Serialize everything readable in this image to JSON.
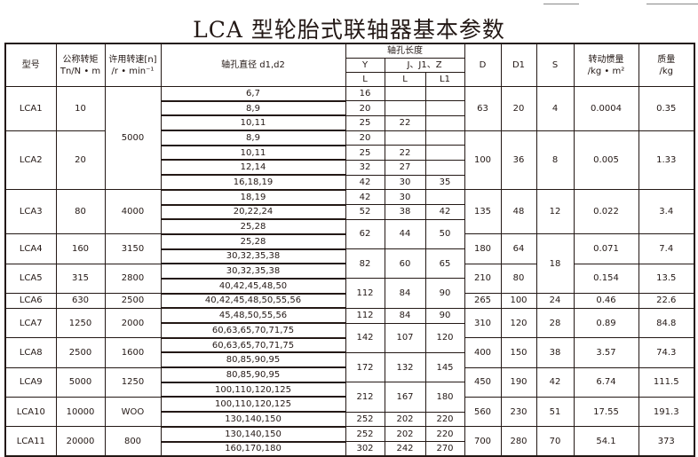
{
  "title": "LCA 型轮胎式联轴器基本参数",
  "header": {
    "model": "型号",
    "torque_1": "公称转矩",
    "torque_2": "Tn/N • m",
    "speed_1": "许用转速[n]",
    "speed_2": "/r • min⁻¹",
    "bore": "轴孔直径 d1,d2",
    "length": "轴孔长度",
    "y": "Y",
    "jz": "J、J1、Z",
    "l_y": "L",
    "l_j": "L",
    "l1": "L1",
    "d": "D",
    "d1": "D1",
    "s": "S",
    "inertia_1": "转动惯量",
    "inertia_2": "/kg • m²",
    "mass_1": "质量",
    "mass_2": "/kg"
  },
  "models": [
    {
      "model": "LCA1",
      "torque": "10",
      "bores": [
        "6,7",
        "8,9",
        "10,11"
      ],
      "D": "63",
      "D1": "20",
      "inertia": "0.0004",
      "mass": "0.35"
    },
    {
      "model": "LCA2",
      "torque": "20",
      "bores": [
        "8,9",
        "10,11",
        "12,14",
        "16,18,19"
      ],
      "D": "100",
      "D1": "36",
      "inertia": "0.005",
      "mass": "1.33"
    },
    {
      "model": "LCA3",
      "torque": "80",
      "speed": "4000",
      "bores": [
        "18,19",
        "20,22,24",
        "25,28"
      ],
      "D": "135",
      "D1": "48",
      "S": "12",
      "inertia": "0.022",
      "mass": "3.4"
    },
    {
      "model": "LCA4",
      "torque": "160",
      "speed": "3150",
      "bores": [
        "25,28",
        "30,32,35,38"
      ],
      "D": "180",
      "D1": "64",
      "inertia": "0.071",
      "mass": "7.4"
    },
    {
      "model": "LCA5",
      "torque": "315",
      "speed": "2800",
      "bores": [
        "30,32,35,38",
        "40,42,45,48,50"
      ],
      "D": "210",
      "D1": "80",
      "inertia": "0.154",
      "mass": "13.5"
    },
    {
      "model": "LCA6",
      "torque": "630",
      "speed": "2500",
      "bores": [
        "40,42,45,48,50,55,56"
      ],
      "D": "265",
      "D1": "100",
      "S": "24",
      "inertia": "0.46",
      "mass": "22.6"
    },
    {
      "model": "LCA7",
      "torque": "1250",
      "speed": "2000",
      "bores": [
        "45,48,50,55,56",
        "60,63,65,70,71,75"
      ],
      "D": "310",
      "D1": "120",
      "S": "28",
      "inertia": "0.89",
      "mass": "84.8"
    },
    {
      "model": "LCA8",
      "torque": "2500",
      "speed": "1600",
      "bores": [
        "60,63,65,70,71,75",
        "80,85,90,95"
      ],
      "D": "400",
      "D1": "150",
      "S": "38",
      "inertia": "3.57",
      "mass": "74.3"
    },
    {
      "model": "LCA9",
      "torque": "5000",
      "speed": "1250",
      "bores": [
        "80,85,90,95",
        "100,110,120,125"
      ],
      "D": "450",
      "D1": "190",
      "S": "42",
      "inertia": "6.74",
      "mass": "111.5"
    },
    {
      "model": "LCA10",
      "torque": "10000",
      "speed": "WOO",
      "bores": [
        "100,110,120,125",
        "130,140,150"
      ],
      "D": "560",
      "D1": "230",
      "S": "51",
      "inertia": "17.55",
      "mass": "191.3"
    },
    {
      "model": "LCA11",
      "torque": "20000",
      "speed": "800",
      "bores": [
        "130,140,150",
        "160,170,180"
      ],
      "D": "700",
      "D1": "280",
      "S": "70",
      "inertia": "54.1",
      "mass": "373"
    }
  ],
  "shared_speed": {
    "value": "5000",
    "models": 2
  },
  "shared_s": {
    "value": "18",
    "models": 2,
    "start": 3,
    "first_value_for": [
      "LCA1",
      "LCA2"
    ],
    "values": [
      "4",
      "8"
    ]
  },
  "lengths": [
    {
      "Y": "16",
      "J": "",
      "L1": "",
      "rows": 1
    },
    {
      "Y": "20",
      "J": "",
      "L1": "",
      "rows": 1
    },
    {
      "Y": "25",
      "J": "22",
      "L1": "",
      "rows": 1
    },
    {
      "Y": "20",
      "J": "",
      "L1": "",
      "rows": 1
    },
    {
      "Y": "25",
      "J": "22",
      "L1": "",
      "rows": 1
    },
    {
      "Y": "32",
      "J": "27",
      "L1": "",
      "rows": 1
    },
    {
      "Y": "42",
      "J": "30",
      "L1": "35",
      "rows": 1
    },
    {
      "Y": "42",
      "J": "30",
      "L1": "",
      "rows": 1
    },
    {
      "Y": "52",
      "J": "38",
      "L1": "42",
      "rows": 1
    },
    {
      "Y": "62",
      "J": "44",
      "L1": "50",
      "rows": 2
    },
    {
      "Y": "82",
      "J": "60",
      "L1": "65",
      "rows": 2
    },
    {
      "Y": "112",
      "J": "84",
      "L1": "90",
      "rows": 2
    },
    {
      "Y": "112",
      "J": "84",
      "L1": "90",
      "rows": 1
    },
    {
      "Y": "142",
      "J": "107",
      "L1": "120",
      "rows": 2
    },
    {
      "Y": "172",
      "J": "132",
      "L1": "145",
      "rows": 2
    },
    {
      "Y": "212",
      "J": "167",
      "L1": "180",
      "rows": 2
    },
    {
      "Y": "252",
      "J": "202",
      "L1": "220",
      "rows": 1
    },
    {
      "Y": "252",
      "J": "202",
      "L1": "220",
      "rows": 1
    },
    {
      "Y": "302",
      "J": "242",
      "L1": "270",
      "rows": 1
    }
  ]
}
